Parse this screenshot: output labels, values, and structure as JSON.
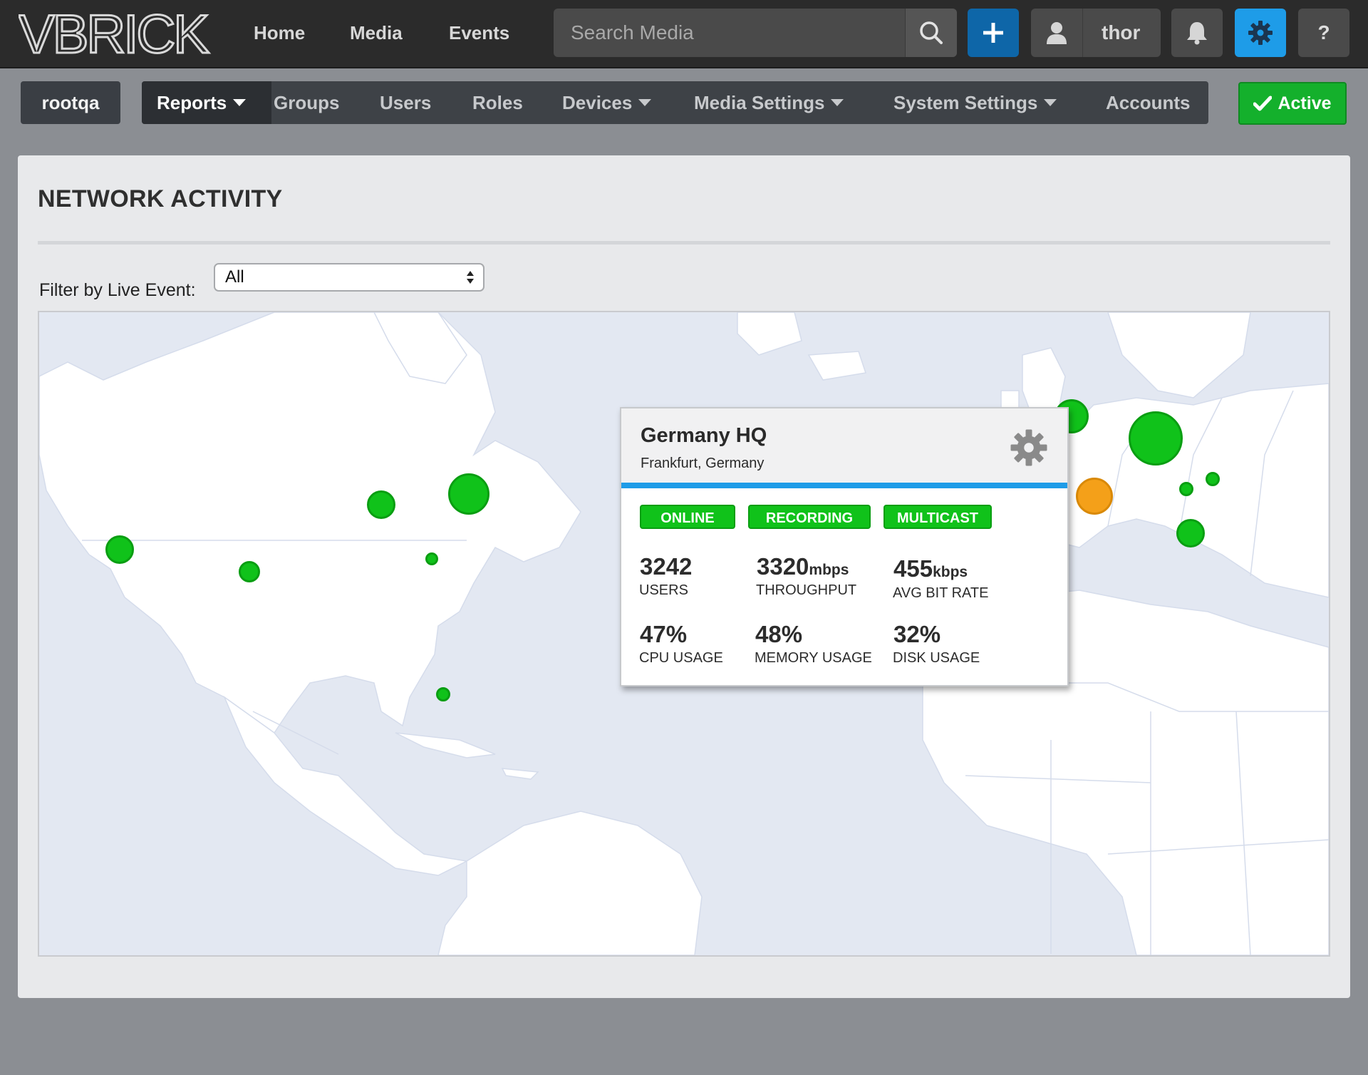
{
  "brand": {
    "logo_text": "VBRICK"
  },
  "topnav": {
    "links": [
      "Home",
      "Media",
      "Events"
    ],
    "search_placeholder": "Search Media",
    "user_name": "thor",
    "help_label": "?"
  },
  "subnav": {
    "tenant": "rootqa",
    "items": [
      {
        "label": "Reports",
        "dropdown": true,
        "active": true
      },
      {
        "label": "Groups"
      },
      {
        "label": "Users"
      },
      {
        "label": "Roles"
      },
      {
        "label": "Devices",
        "dropdown": true
      },
      {
        "label": "Media Settings",
        "dropdown": true
      },
      {
        "label": "System Settings",
        "dropdown": true
      },
      {
        "label": "Accounts"
      }
    ],
    "status_label": "Active"
  },
  "page": {
    "title": "NETWORK ACTIVITY",
    "filter_label": "Filter by Live Event:",
    "filter_value": "All"
  },
  "map": {
    "markers": [
      {
        "location": "West Coast",
        "status": "green"
      },
      {
        "location": "Texas",
        "status": "green"
      },
      {
        "location": "Great Lakes",
        "status": "green"
      },
      {
        "location": "Northeast small",
        "status": "green"
      },
      {
        "location": "Northeast large",
        "status": "green"
      },
      {
        "location": "Florida",
        "status": "green"
      },
      {
        "location": "United Kingdom",
        "status": "green"
      },
      {
        "location": "Central Europe",
        "status": "green"
      },
      {
        "location": "Western Europe",
        "status": "orange"
      },
      {
        "location": "Eastern Europe small",
        "status": "green"
      },
      {
        "location": "Eastern Europe",
        "status": "green"
      },
      {
        "location": "Italy",
        "status": "green"
      }
    ],
    "colors": {
      "green": "#10c21a",
      "orange": "#f4a019",
      "water": "#e3e8f2",
      "land": "#ffffff"
    }
  },
  "popup": {
    "name": "Germany HQ",
    "location": "Frankfurt, Germany",
    "badges": [
      "ONLINE",
      "RECORDING",
      "MULTICAST"
    ],
    "stats": [
      {
        "value": "3242",
        "unit": "",
        "label": "USERS"
      },
      {
        "value": "3320",
        "unit": "mbps",
        "label": "THROUGHPUT"
      },
      {
        "value": "455",
        "unit": "kbps",
        "label": "AVG BIT RATE"
      },
      {
        "value": "47%",
        "unit": "",
        "label": "CPU USAGE"
      },
      {
        "value": "48%",
        "unit": "",
        "label": "MEMORY USAGE"
      },
      {
        "value": "32%",
        "unit": "",
        "label": "DISK USAGE"
      }
    ]
  },
  "colors": {
    "topbar": "#2b2b2b",
    "accent_blue": "#1e9ce8",
    "add_button": "#0e66a8",
    "active_green": "#14b02c"
  }
}
